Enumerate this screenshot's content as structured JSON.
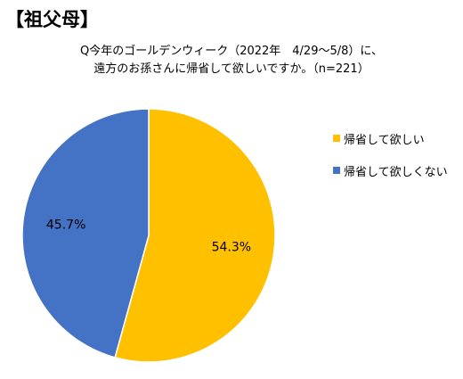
{
  "heading": "【祖父母】",
  "chart_data": {
    "type": "pie",
    "title_lines": [
      "Q今年のゴールデンウィーク（2022年　4/29～5/8）に、",
      "遠方のお孫さんに帰省して欲しいですか。（n=221）"
    ],
    "slices": [
      {
        "label": "帰省して欲しい",
        "value": 54.3,
        "display": "54.3%",
        "color": "#FFC000"
      },
      {
        "label": "帰省して欲しくない",
        "value": 45.7,
        "display": "45.7%",
        "color": "#4472C4"
      }
    ],
    "legend_position": "right"
  }
}
